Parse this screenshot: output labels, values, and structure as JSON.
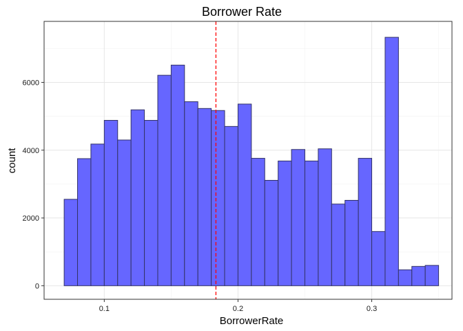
{
  "chart_data": {
    "type": "bar",
    "title": "Borrower Rate",
    "xlabel": "BorrowerRate",
    "ylabel": "count",
    "xlim": [
      0.055,
      0.36
    ],
    "ylim": [
      -400,
      7800
    ],
    "x_ticks": [
      0.1,
      0.2,
      0.3
    ],
    "x_tick_labels": [
      "0.1",
      "0.2",
      "0.3"
    ],
    "y_ticks": [
      0,
      2000,
      4000,
      6000
    ],
    "y_tick_labels": [
      "0",
      "2000",
      "4000",
      "6000"
    ],
    "bin_width": 0.01,
    "bin_start": 0.07,
    "values": [
      2550,
      3750,
      4180,
      4880,
      4300,
      5190,
      4880,
      6210,
      6510,
      5430,
      5230,
      5170,
      4700,
      5360,
      3760,
      3110,
      3680,
      4020,
      3680,
      4040,
      2410,
      2520,
      3760,
      1600,
      7330,
      470,
      570,
      600
    ],
    "mean_line": 0.1835,
    "bar_fill": "#6666ff",
    "bar_stroke": "#333366",
    "mean_line_color": "#ff0000",
    "grid": true,
    "background": "#ffffff"
  }
}
